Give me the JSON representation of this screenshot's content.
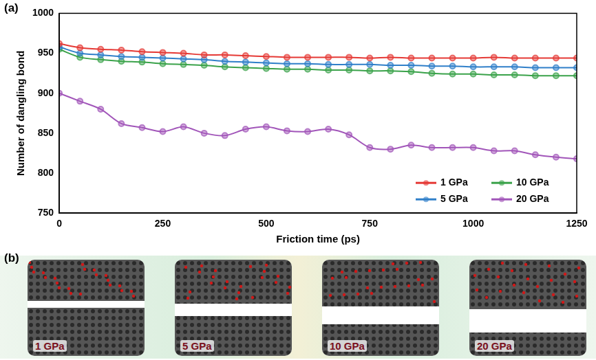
{
  "chart_data": {
    "type": "line",
    "x_label": "Friction time (ps)",
    "y_label": "Number of dangling bond",
    "x": [
      0,
      50,
      100,
      150,
      200,
      250,
      300,
      350,
      400,
      450,
      500,
      550,
      600,
      650,
      700,
      750,
      800,
      850,
      900,
      950,
      1000,
      1050,
      1100,
      1150,
      1200,
      1250
    ],
    "series": [
      {
        "name": "1 GPa",
        "color": "#e53935",
        "values": [
          962,
          957,
          955,
          954,
          952,
          951,
          950,
          948,
          948,
          947,
          946,
          945,
          945,
          945,
          945,
          944,
          945,
          944,
          944,
          944,
          944,
          945,
          944,
          944,
          944,
          944
        ]
      },
      {
        "name": "5 GPa",
        "color": "#2f7fc9",
        "values": [
          958,
          950,
          948,
          946,
          945,
          944,
          943,
          942,
          940,
          939,
          938,
          937,
          937,
          936,
          936,
          936,
          935,
          935,
          934,
          934,
          933,
          933,
          933,
          932,
          932,
          932
        ]
      },
      {
        "name": "10 GPa",
        "color": "#3aa24a",
        "values": [
          955,
          945,
          942,
          940,
          939,
          937,
          936,
          935,
          933,
          932,
          931,
          930,
          930,
          929,
          929,
          928,
          928,
          927,
          925,
          924,
          924,
          923,
          923,
          922,
          922,
          922
        ]
      },
      {
        "name": "20 GPa",
        "color": "#a155b9",
        "values": [
          900,
          890,
          880,
          862,
          857,
          852,
          858,
          850,
          847,
          855,
          858,
          853,
          852,
          855,
          848,
          832,
          830,
          835,
          832,
          832,
          832,
          828,
          828,
          823,
          820,
          818
        ]
      }
    ],
    "xlim": [
      0,
      1250
    ],
    "xticks": [
      0,
      250,
      500,
      750,
      1000,
      1250
    ],
    "ylim": [
      750,
      1000
    ],
    "yticks": [
      750,
      800,
      850,
      900,
      950,
      1000
    ],
    "grid": false,
    "legend": "lower right",
    "marker": "circle",
    "line_style": "solid"
  },
  "panels": {
    "a": "(a)",
    "b": {
      "label": "(b)",
      "images": [
        "1 GPa",
        "5 GPa",
        "10 GPa",
        "20 GPa"
      ]
    }
  }
}
